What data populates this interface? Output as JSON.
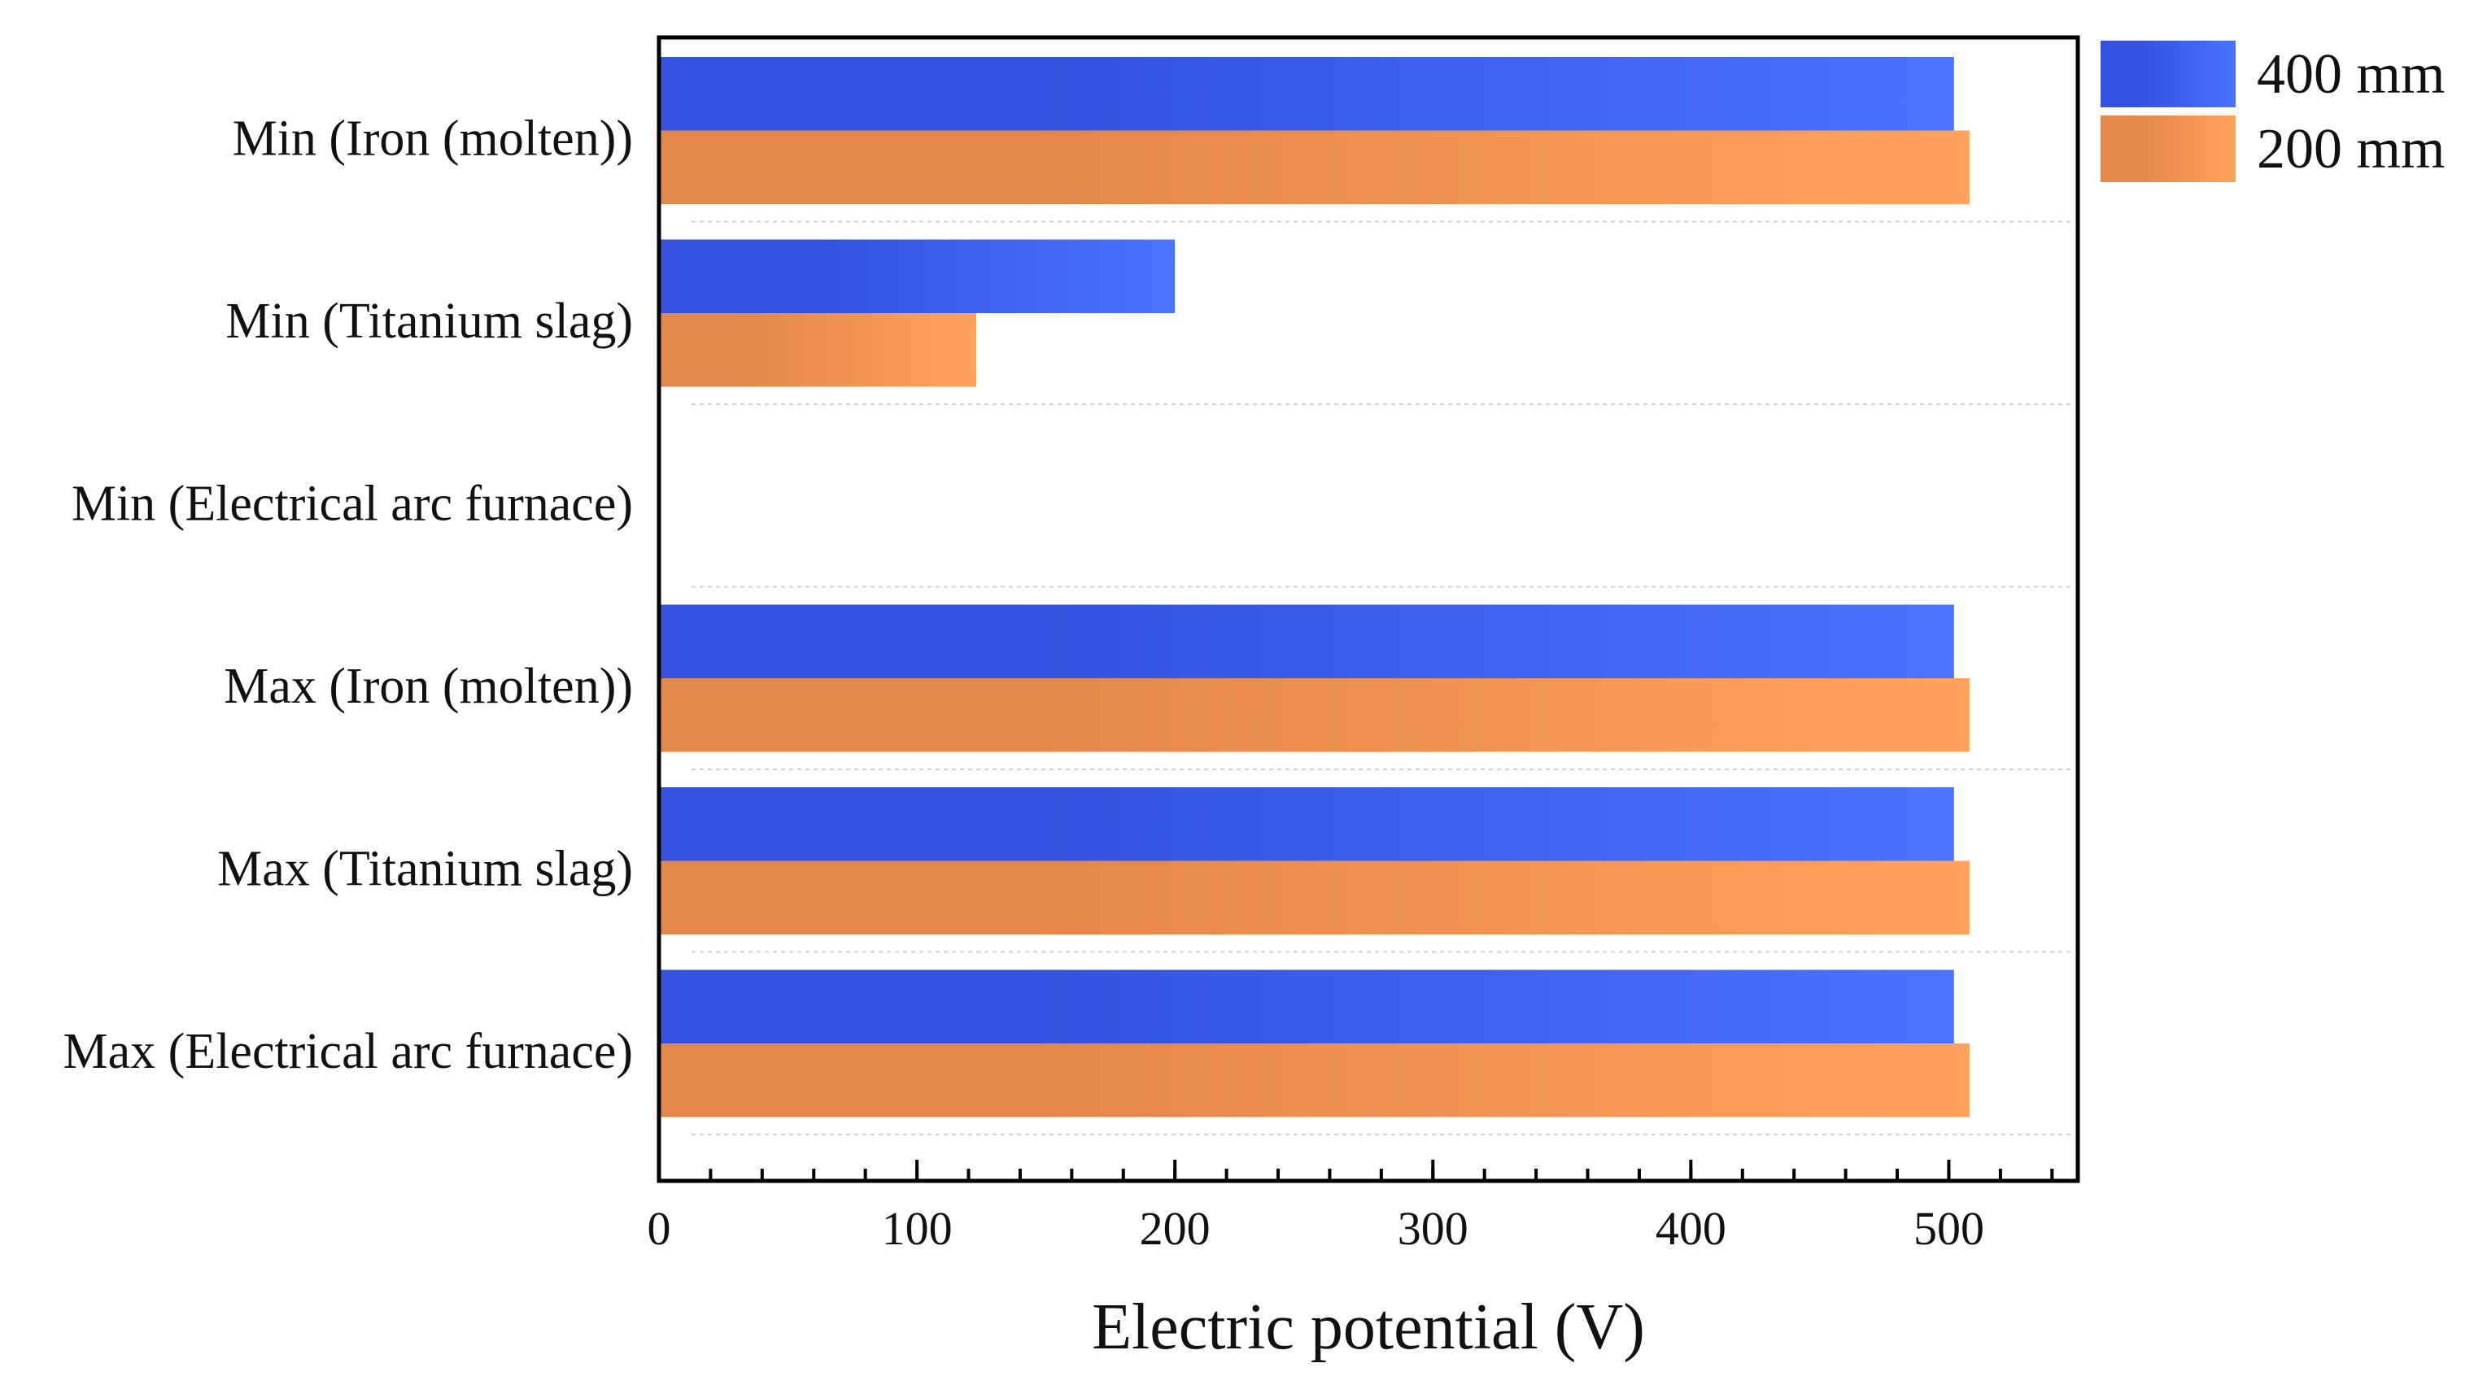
{
  "chart_data": {
    "type": "bar",
    "orientation": "horizontal",
    "categories": [
      "Min (Iron (molten))",
      "Min (Titanium slag)",
      "Min (Electrical arc furnace)",
      "Max (Iron (molten))",
      "Max (Titanium slag)",
      "Max (Electrical arc furnace)"
    ],
    "series": [
      {
        "name": "400 mm",
        "values": [
          502,
          200,
          0,
          502,
          502,
          502
        ]
      },
      {
        "name": "200 mm",
        "values": [
          508,
          123,
          0,
          508,
          508,
          508
        ]
      }
    ],
    "colors": {
      "400 mm": [
        "#3352dd",
        "#4a73ff"
      ],
      "200 mm": [
        "#e3874a",
        "#ffa25b"
      ]
    },
    "title": "",
    "xlabel": "Electric potential (V)",
    "ylabel": "",
    "xlim": [
      0,
      550
    ],
    "major_ticks": [
      0,
      100,
      200,
      300,
      400,
      500
    ],
    "minor_tick_step": 20,
    "grid": "horizontal-dashed",
    "legend_position": "top-right-outside"
  }
}
